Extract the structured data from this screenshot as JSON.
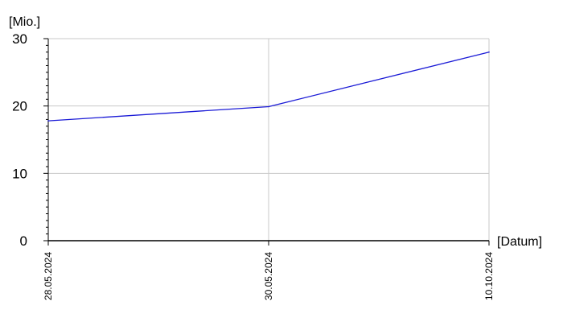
{
  "chart_data": {
    "type": "line",
    "title": "",
    "xlabel": "[Datum]",
    "ylabel": "[Mio.]",
    "categories": [
      "28.05.2024",
      "30.05.2024",
      "10.10.2024"
    ],
    "ylim": [
      0,
      30
    ],
    "yticks": [
      "0",
      "10",
      "20",
      "30"
    ],
    "grid": true,
    "series": [
      {
        "values": [
          17.8,
          19.9,
          28.0
        ]
      }
    ],
    "colors": {
      "line": "#1a1ad6",
      "grid": "#c8c8c8",
      "axis": "#000000"
    }
  }
}
